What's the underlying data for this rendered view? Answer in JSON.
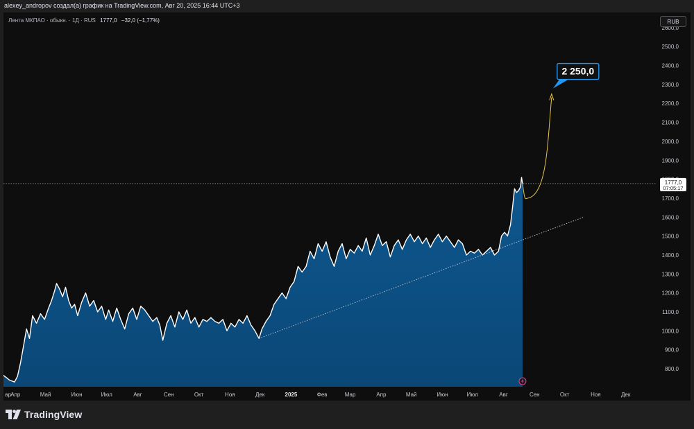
{
  "header": {
    "author_line": "alexey_andropov создал(а) график на TradingView.com, Авг 20, 2025 16:44 UTC+3"
  },
  "legend": {
    "symbol": "Лента МКПАО · обыкн. · 1Д · RUS",
    "last": "1777,0",
    "change": "−32,0 (−1,77%)"
  },
  "toolbar": {
    "currency": "RUB"
  },
  "price_label": {
    "price": "1777,0",
    "countdown": "07:05:17"
  },
  "annotation": {
    "target": "2 250,0"
  },
  "footer": {
    "brand": "TradingView",
    "logo_icon": "tradingview-logo-icon"
  },
  "colors": {
    "line": "#ffffff",
    "area": "#0d5287",
    "projection": "#e6c84a",
    "callout": "#2196f3",
    "trend": "#c7cdd8"
  },
  "chart_data": {
    "type": "area",
    "y_ticks": [
      "800,0",
      "900,0",
      "1000,0",
      "1100,0",
      "1200,0",
      "1300,0",
      "1400,0",
      "1500,0",
      "1600,0",
      "1700,0",
      "1800,0",
      "1900,0",
      "2000,0",
      "2100,0",
      "2200,0",
      "2300,0",
      "2400,0",
      "2500,0",
      "2600,0"
    ],
    "x_ticks": [
      "ар",
      "Апр",
      "Май",
      "Июн",
      "Июл",
      "Авг",
      "Сен",
      "Окт",
      "Ноя",
      "Дек",
      "2025",
      "Фев",
      "Мар",
      "Апр",
      "Май",
      "Июн",
      "Июл",
      "Авг",
      "Сен",
      "Окт",
      "Ноя",
      "Дек"
    ],
    "ylim": [
      705,
      2680
    ],
    "x_axis_start": "2024-03-20",
    "x_axis_end": "2025-12-31",
    "series": [
      {
        "points": [
          [
            "2024-03-20",
            765
          ],
          [
            "2024-03-26",
            740
          ],
          [
            "2024-03-31",
            730
          ],
          [
            "2024-04-03",
            760
          ],
          [
            "2024-04-06",
            830
          ],
          [
            "2024-04-09",
            920
          ],
          [
            "2024-04-12",
            1010
          ],
          [
            "2024-04-15",
            960
          ],
          [
            "2024-04-18",
            1080
          ],
          [
            "2024-04-22",
            1040
          ],
          [
            "2024-04-26",
            1090
          ],
          [
            "2024-04-30",
            1060
          ],
          [
            "2024-05-04",
            1120
          ],
          [
            "2024-05-07",
            1160
          ],
          [
            "2024-05-10",
            1210
          ],
          [
            "2024-05-12",
            1250
          ],
          [
            "2024-05-15",
            1220
          ],
          [
            "2024-05-18",
            1180
          ],
          [
            "2024-05-21",
            1230
          ],
          [
            "2024-05-24",
            1160
          ],
          [
            "2024-05-27",
            1120
          ],
          [
            "2024-05-30",
            1140
          ],
          [
            "2024-06-02",
            1080
          ],
          [
            "2024-06-06",
            1150
          ],
          [
            "2024-06-10",
            1200
          ],
          [
            "2024-06-14",
            1130
          ],
          [
            "2024-06-18",
            1160
          ],
          [
            "2024-06-22",
            1100
          ],
          [
            "2024-06-26",
            1130
          ],
          [
            "2024-06-30",
            1060
          ],
          [
            "2024-07-03",
            1110
          ],
          [
            "2024-07-07",
            1050
          ],
          [
            "2024-07-11",
            1120
          ],
          [
            "2024-07-15",
            1060
          ],
          [
            "2024-07-19",
            1010
          ],
          [
            "2024-07-23",
            1090
          ],
          [
            "2024-07-27",
            1120
          ],
          [
            "2024-07-31",
            1060
          ],
          [
            "2024-08-04",
            1130
          ],
          [
            "2024-08-08",
            1110
          ],
          [
            "2024-08-12",
            1080
          ],
          [
            "2024-08-16",
            1050
          ],
          [
            "2024-08-20",
            1070
          ],
          [
            "2024-08-23",
            1030
          ],
          [
            "2024-08-26",
            950
          ],
          [
            "2024-08-30",
            1040
          ],
          [
            "2024-09-03",
            1080
          ],
          [
            "2024-09-07",
            1020
          ],
          [
            "2024-09-11",
            1100
          ],
          [
            "2024-09-15",
            1060
          ],
          [
            "2024-09-19",
            1110
          ],
          [
            "2024-09-23",
            1040
          ],
          [
            "2024-09-27",
            1070
          ],
          [
            "2024-10-01",
            1020
          ],
          [
            "2024-10-05",
            1060
          ],
          [
            "2024-10-09",
            1050
          ],
          [
            "2024-10-13",
            1070
          ],
          [
            "2024-10-17",
            1050
          ],
          [
            "2024-10-21",
            1040
          ],
          [
            "2024-10-25",
            1060
          ],
          [
            "2024-10-29",
            1000
          ],
          [
            "2024-11-02",
            1040
          ],
          [
            "2024-11-06",
            1020
          ],
          [
            "2024-11-10",
            1060
          ],
          [
            "2024-11-14",
            1040
          ],
          [
            "2024-11-18",
            1080
          ],
          [
            "2024-11-22",
            1030
          ],
          [
            "2024-11-26",
            1000
          ],
          [
            "2024-11-30",
            960
          ],
          [
            "2024-12-03",
            1010
          ],
          [
            "2024-12-07",
            1050
          ],
          [
            "2024-12-11",
            1080
          ],
          [
            "2024-12-15",
            1140
          ],
          [
            "2024-12-19",
            1170
          ],
          [
            "2024-12-23",
            1200
          ],
          [
            "2024-12-27",
            1170
          ],
          [
            "2024-12-31",
            1230
          ],
          [
            "2025-01-04",
            1260
          ],
          [
            "2025-01-08",
            1340
          ],
          [
            "2025-01-12",
            1310
          ],
          [
            "2025-01-16",
            1340
          ],
          [
            "2025-01-20",
            1420
          ],
          [
            "2025-01-24",
            1380
          ],
          [
            "2025-01-28",
            1460
          ],
          [
            "2025-02-01",
            1420
          ],
          [
            "2025-02-05",
            1470
          ],
          [
            "2025-02-09",
            1390
          ],
          [
            "2025-02-13",
            1340
          ],
          [
            "2025-02-17",
            1420
          ],
          [
            "2025-02-21",
            1460
          ],
          [
            "2025-02-25",
            1380
          ],
          [
            "2025-03-01",
            1430
          ],
          [
            "2025-03-05",
            1410
          ],
          [
            "2025-03-09",
            1450
          ],
          [
            "2025-03-13",
            1420
          ],
          [
            "2025-03-17",
            1490
          ],
          [
            "2025-03-21",
            1400
          ],
          [
            "2025-03-25",
            1450
          ],
          [
            "2025-03-29",
            1510
          ],
          [
            "2025-04-02",
            1450
          ],
          [
            "2025-04-06",
            1470
          ],
          [
            "2025-04-10",
            1390
          ],
          [
            "2025-04-14",
            1450
          ],
          [
            "2025-04-18",
            1480
          ],
          [
            "2025-04-22",
            1430
          ],
          [
            "2025-04-26",
            1480
          ],
          [
            "2025-04-30",
            1510
          ],
          [
            "2025-05-04",
            1470
          ],
          [
            "2025-05-08",
            1500
          ],
          [
            "2025-05-12",
            1460
          ],
          [
            "2025-05-16",
            1490
          ],
          [
            "2025-05-20",
            1440
          ],
          [
            "2025-05-24",
            1480
          ],
          [
            "2025-05-28",
            1510
          ],
          [
            "2025-06-01",
            1470
          ],
          [
            "2025-06-05",
            1500
          ],
          [
            "2025-06-09",
            1470
          ],
          [
            "2025-06-13",
            1440
          ],
          [
            "2025-06-17",
            1480
          ],
          [
            "2025-06-21",
            1460
          ],
          [
            "2025-06-25",
            1400
          ],
          [
            "2025-06-29",
            1420
          ],
          [
            "2025-07-03",
            1410
          ],
          [
            "2025-07-07",
            1430
          ],
          [
            "2025-07-11",
            1400
          ],
          [
            "2025-07-15",
            1420
          ],
          [
            "2025-07-19",
            1440
          ],
          [
            "2025-07-23",
            1400
          ],
          [
            "2025-07-27",
            1420
          ],
          [
            "2025-07-30",
            1500
          ],
          [
            "2025-08-02",
            1520
          ],
          [
            "2025-08-05",
            1500
          ],
          [
            "2025-08-08",
            1560
          ],
          [
            "2025-08-10",
            1650
          ],
          [
            "2025-08-12",
            1750
          ],
          [
            "2025-08-14",
            1730
          ],
          [
            "2025-08-16",
            1740
          ],
          [
            "2025-08-18",
            1760
          ],
          [
            "2025-08-19",
            1810
          ],
          [
            "2025-08-20",
            1777
          ]
        ]
      }
    ],
    "trendline": {
      "from": [
        "2024-11-30",
        960
      ],
      "to": [
        "2025-10-20",
        1600
      ]
    },
    "projection": {
      "from": [
        "2025-08-20",
        1777
      ],
      "low": [
        "2025-08-25",
        1700
      ],
      "to": [
        "2025-09-18",
        2250
      ]
    },
    "current_price": 1777,
    "target_price": 2250
  }
}
